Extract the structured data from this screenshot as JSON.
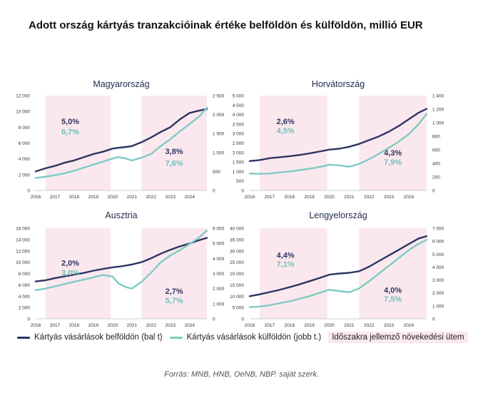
{
  "title": "Adott ország kártyás tranzakcióinak értéke belföldön és külföldön, millió EUR",
  "colors": {
    "domestic": "#2d3561",
    "abroad": "#7ecbc4",
    "period": "#fbe8ee",
    "annotation_domestic": "#2d3561",
    "annotation_abroad": "#6dbfb8"
  },
  "legend": {
    "domestic": "Kártyás vásárlások belföldön (bal t)",
    "abroad": "Kártyás vásárlások külföldön (jobb t.)",
    "period": "Időszakra jellemző növekedési ütem"
  },
  "source": "Forrás: MNB, HNB, OeNB, NBP. saját szerk.",
  "chart_data": [
    {
      "type": "line",
      "title": "Magyarország",
      "x_ticks": [
        "2016",
        "2017",
        "2018",
        "2019",
        "2020",
        "2021",
        "2022",
        "2023",
        "2024"
      ],
      "x_range": [
        2016,
        2024.9
      ],
      "y_left": {
        "min": 0,
        "max": 12000,
        "ticks": [
          "0",
          "2 000",
          "4 000",
          "6 000",
          "8 000",
          "10 000",
          "12 000"
        ]
      },
      "y_right": {
        "min": 0,
        "max": 2500,
        "ticks": [
          "0",
          "500",
          "1 000",
          "1 500",
          "2 000",
          "2 500"
        ]
      },
      "periods": [
        [
          2016.5,
          2019.9
        ],
        [
          2021.5,
          2024.9
        ]
      ],
      "annotations": [
        {
          "domestic": "5,0%",
          "abroad": "6,7%",
          "x": 2017.8,
          "y_domestic": 8400,
          "y_abroad": 7100
        },
        {
          "domestic": "3,8%",
          "abroad": "7,6%",
          "x": 2023.2,
          "y_domestic": 4600,
          "y_abroad": 3100
        }
      ],
      "series": [
        {
          "name": "Kártyás vásárlások belföldön (bal t)",
          "axis": "left",
          "x": [
            2016,
            2016.5,
            2017,
            2017.5,
            2018,
            2018.5,
            2019,
            2019.5,
            2020,
            2020.3,
            2020.7,
            2021,
            2021.5,
            2022,
            2022.5,
            2023,
            2023.5,
            2024,
            2024.5,
            2024.9
          ],
          "values": [
            2400,
            2800,
            3100,
            3500,
            3800,
            4200,
            4600,
            4900,
            5300,
            5400,
            5500,
            5600,
            6100,
            6700,
            7400,
            8000,
            9000,
            9800,
            10100,
            10300
          ]
        },
        {
          "name": "Kártyás vásárlások külföldön (jobb t.)",
          "axis": "right",
          "x": [
            2016,
            2016.5,
            2017,
            2017.5,
            2018,
            2018.5,
            2019,
            2019.5,
            2020,
            2020.3,
            2020.7,
            2021,
            2021.5,
            2022,
            2022.5,
            2023,
            2023.5,
            2024,
            2024.5,
            2024.9
          ],
          "values": [
            330,
            360,
            400,
            450,
            520,
            600,
            680,
            760,
            840,
            880,
            840,
            790,
            860,
            960,
            1170,
            1350,
            1560,
            1750,
            1950,
            2180
          ]
        }
      ]
    },
    {
      "type": "line",
      "title": "Horvátország",
      "x_ticks": [
        "2016",
        "2017",
        "2018",
        "2019",
        "2020",
        "2021",
        "2022",
        "2023",
        "2024"
      ],
      "x_range": [
        2016,
        2024.9
      ],
      "y_left": {
        "min": 0,
        "max": 5000,
        "ticks": [
          "0",
          "500",
          "1 000",
          "1 500",
          "2 000",
          "2 500",
          "3 000",
          "3 500",
          "4 000",
          "4 500",
          "5 000"
        ]
      },
      "y_right": {
        "min": 0,
        "max": 1400,
        "ticks": [
          "0",
          "200",
          "400",
          "600",
          "800",
          "1 000",
          "1 200",
          "1 400"
        ]
      },
      "periods": [
        [
          2016.5,
          2019.9
        ],
        [
          2021.5,
          2024.9
        ]
      ],
      "annotations": [
        {
          "domestic": "2,6%",
          "abroad": "4,5%",
          "x": 2017.8,
          "y_domestic": 3500,
          "y_abroad": 3000
        },
        {
          "domestic": "4,3%",
          "abroad": "7,9%",
          "x": 2023.2,
          "y_domestic": 1850,
          "y_abroad": 1350
        }
      ],
      "series": [
        {
          "name": "Kártyás vásárlások belföldön (bal t)",
          "axis": "left",
          "x": [
            2016,
            2016.5,
            2017,
            2017.5,
            2018,
            2018.5,
            2019,
            2019.5,
            2020,
            2020.5,
            2021,
            2021.5,
            2022,
            2022.5,
            2023,
            2023.5,
            2024,
            2024.5,
            2024.9
          ],
          "values": [
            1550,
            1600,
            1700,
            1750,
            1800,
            1870,
            1950,
            2050,
            2150,
            2200,
            2300,
            2450,
            2650,
            2850,
            3100,
            3400,
            3750,
            4100,
            4300
          ]
        },
        {
          "name": "Kártyás vásárlások külföldön (jobb t.)",
          "axis": "right",
          "x": [
            2016,
            2016.5,
            2017,
            2017.5,
            2018,
            2018.5,
            2019,
            2019.5,
            2020,
            2020.5,
            2021,
            2021.5,
            2022,
            2022.5,
            2023,
            2023.5,
            2024,
            2024.5,
            2024.9
          ],
          "values": [
            250,
            245,
            250,
            265,
            280,
            300,
            320,
            345,
            380,
            370,
            350,
            390,
            460,
            540,
            630,
            720,
            830,
            980,
            1130
          ]
        }
      ]
    },
    {
      "type": "line",
      "title": "Ausztria",
      "x_ticks": [
        "2016",
        "2017",
        "2018",
        "2019",
        "2020",
        "2021",
        "2022",
        "2023",
        "2024"
      ],
      "x_range": [
        2016,
        2024.9
      ],
      "y_left": {
        "min": 0,
        "max": 16000,
        "ticks": [
          "0",
          "2 000",
          "4 000",
          "6 000",
          "8 000",
          "10 000",
          "12 000",
          "14 000",
          "16 000"
        ]
      },
      "y_right": {
        "min": 0,
        "max": 6000,
        "ticks": [
          "0",
          "1 000",
          "2 000",
          "3 000",
          "4 000",
          "5 000",
          "6 000"
        ]
      },
      "periods": [
        [
          2016.5,
          2019.9
        ],
        [
          2021.5,
          2024.9
        ]
      ],
      "annotations": [
        {
          "domestic": "2,0%",
          "abroad": "3,0%",
          "x": 2017.8,
          "y_domestic": 9400,
          "y_abroad": 7700
        },
        {
          "domestic": "2,7%",
          "abroad": "5,7%",
          "x": 2023.2,
          "y_domestic": 4400,
          "y_abroad": 2800
        }
      ],
      "series": [
        {
          "name": "Kártyás vásárlások belföldön (bal t)",
          "axis": "left",
          "x": [
            2016,
            2016.5,
            2017,
            2017.5,
            2018,
            2018.5,
            2019,
            2019.5,
            2020,
            2020.5,
            2021,
            2021.5,
            2022,
            2022.5,
            2023,
            2023.5,
            2024,
            2024.5,
            2024.9
          ],
          "values": [
            6600,
            6800,
            7200,
            7500,
            7800,
            8100,
            8500,
            8800,
            9100,
            9300,
            9600,
            10000,
            10700,
            11500,
            12200,
            12800,
            13300,
            13900,
            14300
          ]
        },
        {
          "name": "Kártyás vásárlások külföldön (jobb t.)",
          "axis": "right",
          "x": [
            2016,
            2016.5,
            2017,
            2017.5,
            2018,
            2018.5,
            2019,
            2019.5,
            2020,
            2020.3,
            2020.7,
            2021,
            2021.5,
            2022,
            2022.5,
            2023,
            2023.5,
            2024,
            2024.5,
            2024.9
          ],
          "values": [
            1900,
            2000,
            2150,
            2300,
            2450,
            2600,
            2750,
            2900,
            2800,
            2350,
            2100,
            2000,
            2450,
            3050,
            3750,
            4200,
            4550,
            4950,
            5400,
            5850
          ]
        }
      ]
    },
    {
      "type": "line",
      "title": "Lengyelország",
      "x_ticks": [
        "2016",
        "2017",
        "2018",
        "2019",
        "2020",
        "2021",
        "2022",
        "2023",
        "2024"
      ],
      "x_range": [
        2016,
        2024.9
      ],
      "y_left": {
        "min": 0,
        "max": 40000,
        "ticks": [
          "0",
          "5 000",
          "10 000",
          "15 000",
          "20 000",
          "25 000",
          "30 000",
          "35 000",
          "40 000"
        ]
      },
      "y_right": {
        "min": 0,
        "max": 7000,
        "ticks": [
          "0",
          "1 000",
          "2 000",
          "3 000",
          "4 000",
          "5 000",
          "6 000",
          "7 000"
        ]
      },
      "periods": [
        [
          2016.5,
          2019.9
        ],
        [
          2021.5,
          2024.9
        ]
      ],
      "annotations": [
        {
          "domestic": "4,4%",
          "abroad": "7,1%",
          "x": 2017.8,
          "y_domestic": 27000,
          "y_abroad": 23000
        },
        {
          "domestic": "4,0%",
          "abroad": "7,5%",
          "x": 2023.2,
          "y_domestic": 11500,
          "y_abroad": 7500
        }
      ],
      "series": [
        {
          "name": "Kártyás vásárlások belföldön (bal t)",
          "axis": "left",
          "x": [
            2016,
            2016.5,
            2017,
            2017.5,
            2018,
            2018.5,
            2019,
            2019.5,
            2020,
            2020.5,
            2021,
            2021.5,
            2022,
            2022.5,
            2023,
            2023.5,
            2024,
            2024.5,
            2024.9
          ],
          "values": [
            10000,
            10800,
            11800,
            12800,
            14000,
            15200,
            16600,
            18000,
            19500,
            20000,
            20300,
            21000,
            23000,
            25500,
            28000,
            30500,
            33000,
            35500,
            36500
          ]
        },
        {
          "name": "Kártyás vásárlások külföldön (jobb t.)",
          "axis": "right",
          "x": [
            2016,
            2016.5,
            2017,
            2017.5,
            2018,
            2018.5,
            2019,
            2019.5,
            2020,
            2020.5,
            2021,
            2021.5,
            2022,
            2022.5,
            2023,
            2023.5,
            2024,
            2024.5,
            2024.9
          ],
          "values": [
            900,
            950,
            1050,
            1200,
            1350,
            1550,
            1750,
            2000,
            2250,
            2150,
            2050,
            2350,
            2900,
            3500,
            4100,
            4700,
            5300,
            5800,
            6100
          ]
        }
      ]
    }
  ]
}
